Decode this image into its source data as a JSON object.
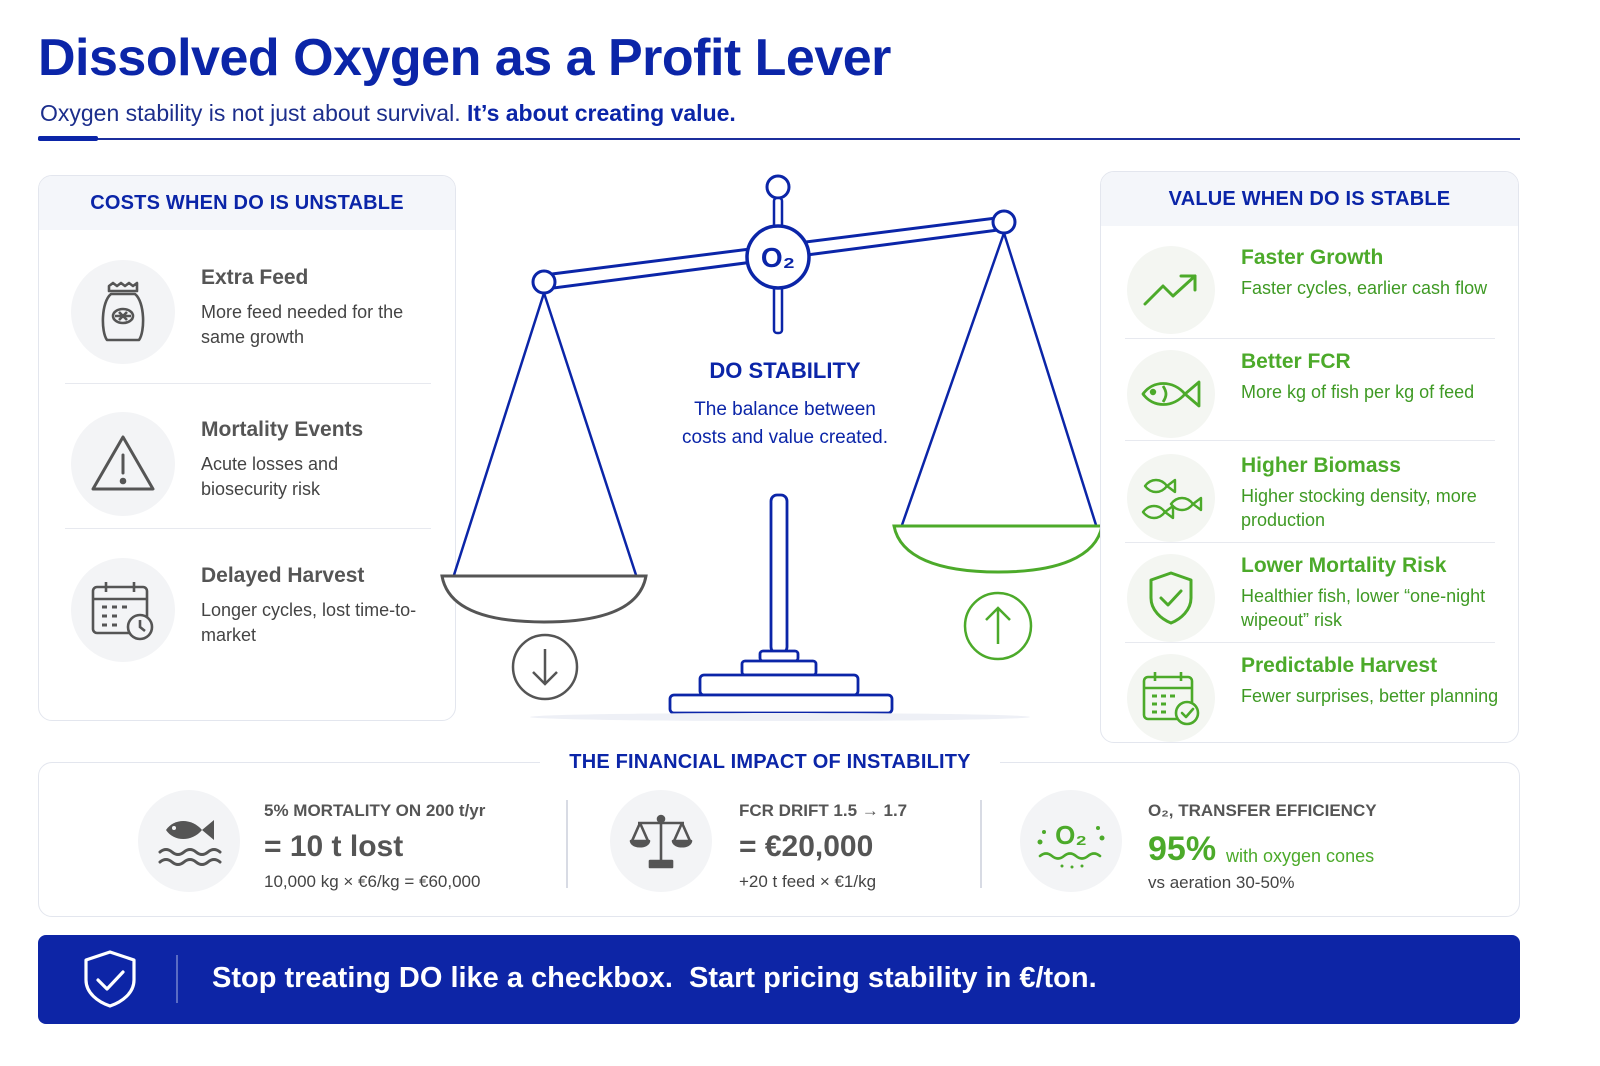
{
  "header": {
    "title": "Dissolved Oxygen as a Profit Lever",
    "subtitle_plain": "Oxygen stability is not just about survival.",
    "subtitle_bold": "It’s about creating value."
  },
  "costs_panel": {
    "heading": "COSTS WHEN DO IS UNSTABLE",
    "items": [
      {
        "icon": "feed-bag-icon",
        "title": "Extra Feed",
        "desc": "More feed needed for the same growth"
      },
      {
        "icon": "warning-icon",
        "title": "Mortality Events",
        "desc": "Acute losses and biosecurity risk"
      },
      {
        "icon": "calendar-clock-icon",
        "title": "Delayed Harvest",
        "desc": "Longer cycles, lost time-to-market"
      }
    ]
  },
  "center": {
    "o2_label": "O₂",
    "heading": "DO STABILITY",
    "desc": "The balance between costs and value created."
  },
  "value_panel": {
    "heading": "VALUE WHEN DO IS STABLE",
    "items": [
      {
        "icon": "trend-up-icon",
        "title": "Faster Growth",
        "desc": "Faster cycles, earlier cash flow"
      },
      {
        "icon": "fish-icon",
        "title": "Better FCR",
        "desc": "More kg of fish per kg of feed"
      },
      {
        "icon": "fish-school-icon",
        "title": "Higher Biomass",
        "desc": "Higher stocking density, more production"
      },
      {
        "icon": "shield-check-icon",
        "title": "Lower Mortality Risk",
        "desc": "Healthier fish, lower “one-night wipeout” risk"
      },
      {
        "icon": "calendar-check-icon",
        "title": "Predictable Harvest",
        "desc": "Fewer surprises, better planning"
      }
    ]
  },
  "impact": {
    "heading": "THE FINANCIAL IMPACT OF INSTABILITY",
    "cards": [
      {
        "icon": "fish-water-icon",
        "label": "5% MORTALITY ON 200 t/yr",
        "big": "= 10 t lost",
        "small": "10,000 kg × €6/kg = €60,000"
      },
      {
        "icon": "balance-scale-icon",
        "label": "FCR DRIFT 1.5 → 1.7",
        "big": "= €20,000",
        "small": "+20 t feed × €1/kg"
      },
      {
        "icon": "oxygen-bubbles-icon",
        "label": "O₂, TRANSFER EFFICIENCY",
        "big": "95%",
        "suffix": "with oxygen cones",
        "small": "vs aeration 30-50%"
      }
    ]
  },
  "banner": {
    "text": "Stop treating DO like a checkbox.  Start pricing stability in €/ton.",
    "icon": "shield-check-icon"
  },
  "colors": {
    "brand_blue": "#0b25a8",
    "green": "#4caa2a",
    "banner_blue": "#0d25a6"
  }
}
